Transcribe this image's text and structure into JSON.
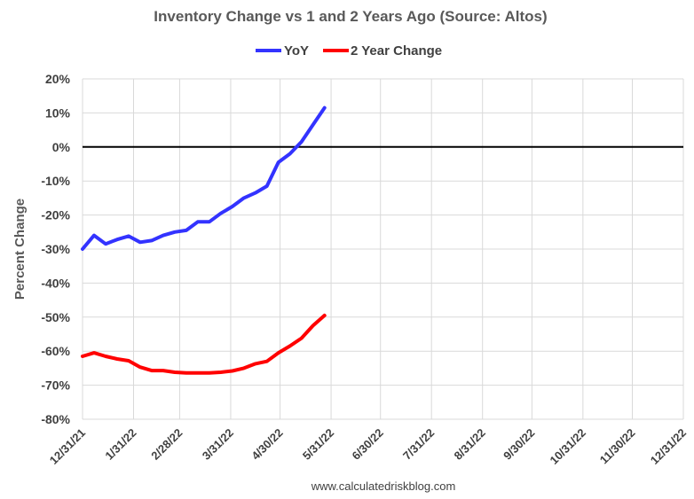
{
  "chart_data": {
    "type": "line",
    "title": "Inventory Change vs 1 and 2 Years Ago (Source: Altos)",
    "ylabel": "Percent Change",
    "xlabel": "",
    "ylim": [
      -80,
      20
    ],
    "y_ticks": [
      20,
      10,
      0,
      -10,
      -20,
      -30,
      -40,
      -50,
      -60,
      -70,
      -80
    ],
    "y_tick_labels": [
      "20%",
      "10%",
      "0%",
      "-10%",
      "-20%",
      "-30%",
      "-40%",
      "-50%",
      "-60%",
      "-70%",
      "-80%"
    ],
    "x_tick_labels": [
      "12/31/21",
      "1/31/22",
      "2/28/22",
      "3/31/22",
      "4/30/22",
      "5/31/22",
      "6/30/22",
      "7/31/22",
      "8/31/22",
      "9/30/22",
      "10/31/22",
      "11/30/22",
      "12/31/22"
    ],
    "x_range": [
      "2021-12-31",
      "2022-12-31"
    ],
    "grid": true,
    "legend_position": "top-center",
    "footer": "www.calculatedriskblog.com",
    "series": [
      {
        "name": "YoY",
        "color": "#3333ff",
        "points": [
          [
            "2021-12-31",
            -30
          ],
          [
            "2022-01-07",
            -26
          ],
          [
            "2022-01-14",
            -28.5
          ],
          [
            "2022-01-21",
            -27.2
          ],
          [
            "2022-01-28",
            -26.2
          ],
          [
            "2022-02-04",
            -28
          ],
          [
            "2022-02-11",
            -27.5
          ],
          [
            "2022-02-18",
            -26
          ],
          [
            "2022-02-25",
            -25
          ],
          [
            "2022-03-04",
            -24.5
          ],
          [
            "2022-03-11",
            -22
          ],
          [
            "2022-03-18",
            -22
          ],
          [
            "2022-03-25",
            -19.5
          ],
          [
            "2022-04-01",
            -17.5
          ],
          [
            "2022-04-08",
            -15
          ],
          [
            "2022-04-15",
            -13.5
          ],
          [
            "2022-04-22",
            -11.5
          ],
          [
            "2022-04-29",
            -4.5
          ],
          [
            "2022-05-06",
            -2
          ],
          [
            "2022-05-13",
            1.5
          ],
          [
            "2022-05-20",
            6.5
          ],
          [
            "2022-05-27",
            11.5
          ]
        ]
      },
      {
        "name": "2 Year Change",
        "color": "#ff0000",
        "points": [
          [
            "2021-12-31",
            -61.5
          ],
          [
            "2022-01-07",
            -60.5
          ],
          [
            "2022-01-14",
            -61.5
          ],
          [
            "2022-01-21",
            -62.3
          ],
          [
            "2022-01-28",
            -62.8
          ],
          [
            "2022-02-04",
            -64.7
          ],
          [
            "2022-02-11",
            -65.7
          ],
          [
            "2022-02-18",
            -65.7
          ],
          [
            "2022-02-25",
            -66.2
          ],
          [
            "2022-03-04",
            -66.4
          ],
          [
            "2022-03-11",
            -66.4
          ],
          [
            "2022-03-18",
            -66.4
          ],
          [
            "2022-03-25",
            -66.2
          ],
          [
            "2022-04-01",
            -65.8
          ],
          [
            "2022-04-08",
            -65
          ],
          [
            "2022-04-15",
            -63.7
          ],
          [
            "2022-04-22",
            -63
          ],
          [
            "2022-04-29",
            -60.5
          ],
          [
            "2022-05-06",
            -58.5
          ],
          [
            "2022-05-13",
            -56.2
          ],
          [
            "2022-05-20",
            -52.5
          ],
          [
            "2022-05-27",
            -49.5
          ]
        ]
      }
    ]
  }
}
